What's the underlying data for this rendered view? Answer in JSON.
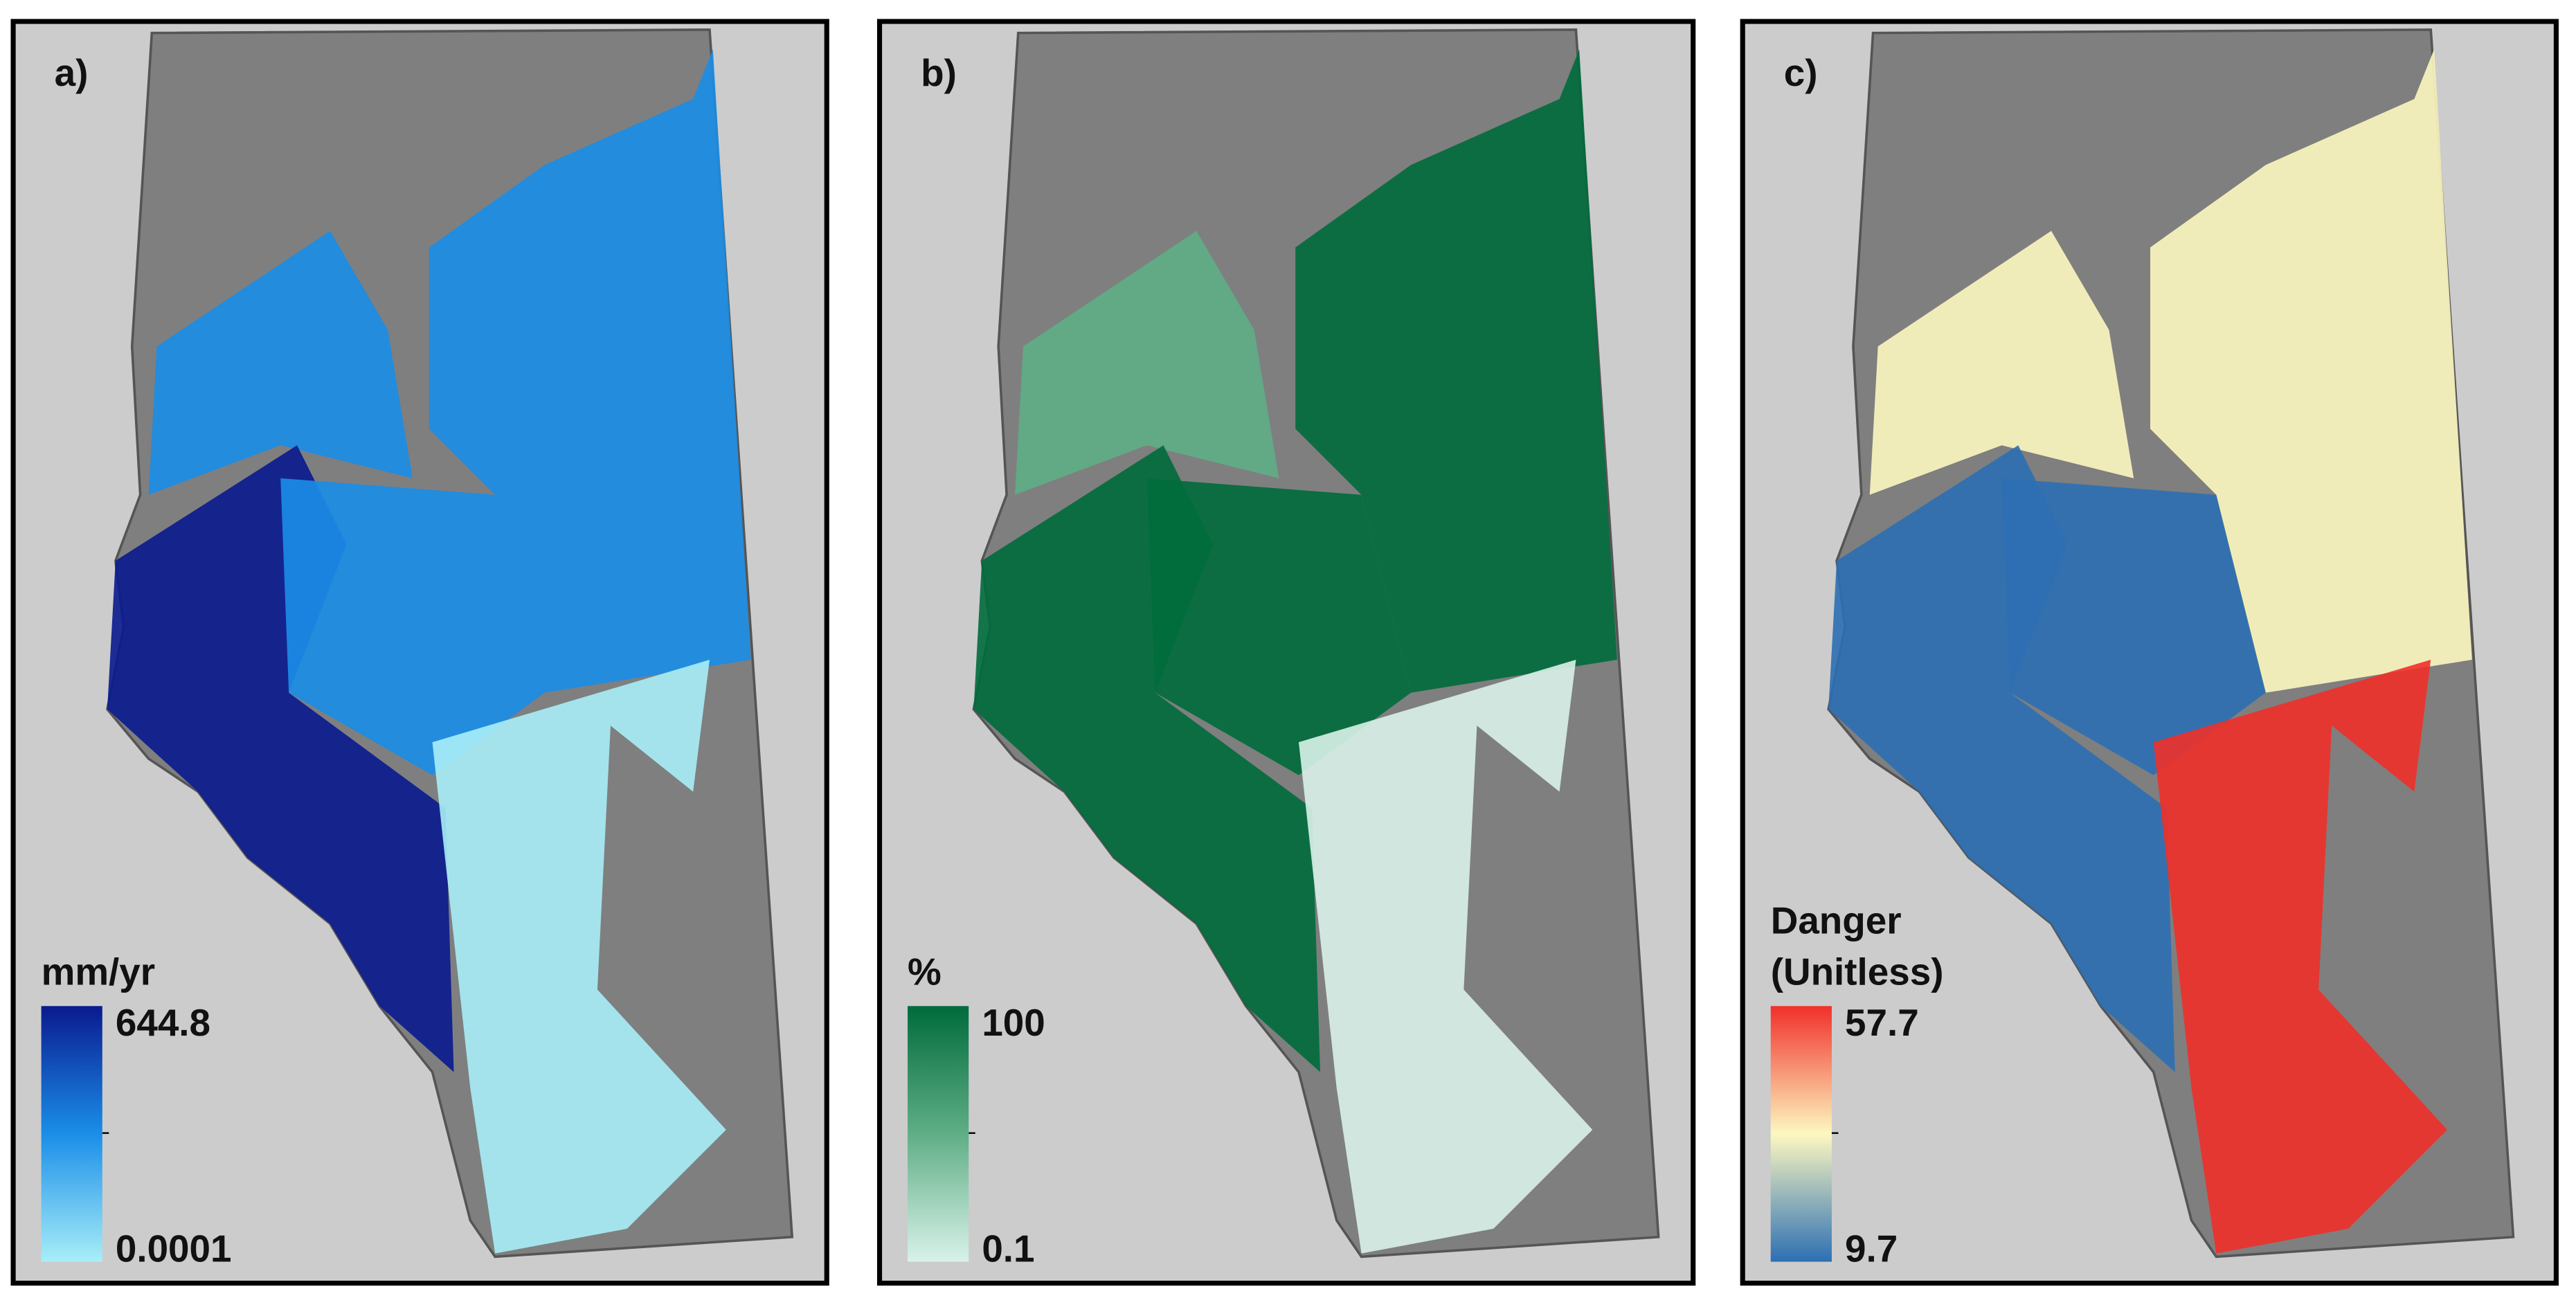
{
  "panels": [
    {
      "label": "a)",
      "legend": {
        "title_lines": [
          "mm/yr"
        ],
        "max": 644.8,
        "min": 0.0001,
        "colors": [
          "#0a1a8f",
          "#1a8ee8",
          "#a8eef8"
        ]
      }
    },
    {
      "label": "b)",
      "legend": {
        "title_lines": [
          "%"
        ],
        "max": 100,
        "min": 0.1,
        "colors": [
          "#006b3c",
          "#5fae86",
          "#d9f2ea"
        ]
      }
    },
    {
      "label": "c)",
      "legend": {
        "title_lines": [
          "Danger",
          "(Unitless)"
        ],
        "max": 57.7,
        "min": 9.7,
        "colors": [
          "#f0302a",
          "#fdf8c0",
          "#2c6fb3"
        ]
      }
    }
  ]
}
